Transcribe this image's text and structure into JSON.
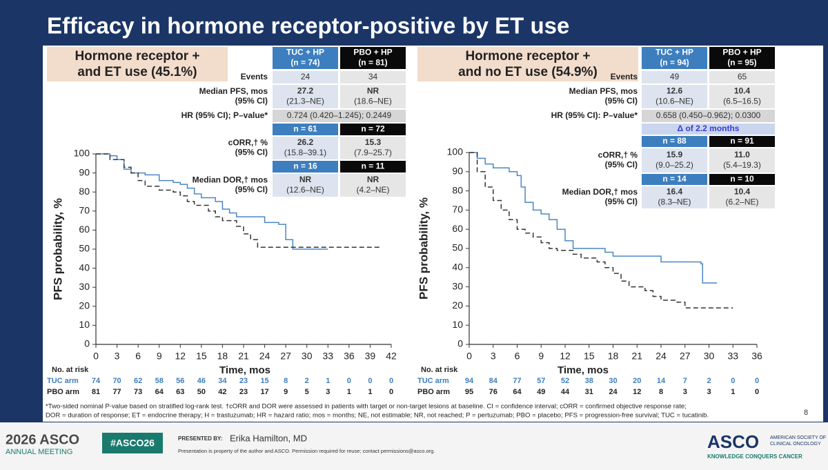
{
  "title": "Efficacy in hormone receptor-positive by ET use",
  "panels": [
    {
      "subgroup": [
        "Hormone receptor +",
        "and ET use (45.1%)"
      ],
      "table": {
        "rows": [
          {
            "cells": [
              [
                "TUC + HP",
                "(n = 74)"
              ],
              [
                "PBO + HP",
                "(n = 81)"
              ]
            ]
          },
          {
            "label": [
              "Events"
            ],
            "cells": [
              [
                "24"
              ],
              [
                "34"
              ]
            ]
          },
          {
            "label": [
              "Median PFS, mos",
              "(95% CI)"
            ],
            "cells": [
              [
                "27.2",
                "(21.3–NE)"
              ],
              [
                "NR",
                "(18.6–NE)"
              ]
            ]
          },
          {
            "label": [
              "HR (95% CI); P–value*"
            ],
            "cells": [
              [
                "0.724 (0.420–1.245); 0.2449"
              ]
            ]
          },
          {
            "cells": [
              [
                "n = 61"
              ],
              [
                "n = 72"
              ]
            ]
          },
          {
            "label": [
              "cORR,† %",
              "(95% CI)"
            ],
            "cells": [
              [
                "26.2",
                "(15.8–39.1)"
              ],
              [
                "15.3",
                "(7.9–25.7)"
              ]
            ]
          },
          {
            "cells": [
              [
                "n = 16"
              ],
              [
                "n = 11"
              ]
            ]
          },
          {
            "label": [
              "Median DOR,† mos",
              "(95% CI)"
            ],
            "cells": [
              [
                "NR",
                "(12.6–NE)"
              ],
              [
                "NR",
                "(4.2–NE)"
              ]
            ]
          }
        ]
      }
    },
    {
      "subgroup": [
        "Hormone receptor +",
        "and no ET use (54.9%)"
      ],
      "table": {
        "rows": [
          {
            "cells": [
              [
                "TUC + HP",
                "(n = 94)"
              ],
              [
                "PBO + HP",
                "(n = 95)"
              ]
            ]
          },
          {
            "label": [
              "Events"
            ],
            "cells": [
              [
                "49"
              ],
              [
                "65"
              ]
            ]
          },
          {
            "label": [
              "Median PFS, mos",
              "(95% CI)"
            ],
            "cells": [
              [
                "12.6",
                "(10.6–NE)"
              ],
              [
                "10.4",
                "(6.5–16.5)"
              ]
            ]
          },
          {
            "label": [
              "HR (95% CI): P–value*"
            ],
            "cells": [
              [
                "0.658 (0.450–0.962); 0.0300"
              ]
            ]
          },
          {
            "cells": [
              [
                "Δ of 2.2 months"
              ]
            ]
          },
          {
            "cells": [
              [
                "n = 88"
              ],
              [
                "n = 91"
              ]
            ]
          },
          {
            "label": [
              "cORR,† %",
              "(95% CI)"
            ],
            "cells": [
              [
                "15.9",
                "(9.0–25.2)"
              ],
              [
                "11.0",
                "(5.4–19.3)"
              ]
            ]
          },
          {
            "cells": [
              [
                "n = 14"
              ],
              [
                "n = 10"
              ]
            ]
          },
          {
            "label": [
              "Median DOR,† mos",
              "(95% CI)"
            ],
            "cells": [
              [
                "16.4",
                "(8.3–NE)"
              ],
              [
                "10.4",
                "(6.2–NE)"
              ]
            ]
          }
        ]
      }
    }
  ],
  "chart_data": [
    {
      "type": "line",
      "step": true,
      "xlabel": "Time, mos",
      "ylabel": "PFS probability, %",
      "xlim": [
        0,
        42
      ],
      "xticks": [
        0,
        3,
        6,
        9,
        12,
        15,
        18,
        21,
        24,
        27,
        30,
        33,
        36,
        39,
        42
      ],
      "ylim": [
        0,
        100
      ],
      "yticks": [
        0,
        10,
        20,
        30,
        40,
        50,
        60,
        70,
        80,
        90,
        100
      ],
      "risk_label": "No. at risk",
      "series": [
        {
          "name": "TUC arm",
          "color": "#4a86c5",
          "dash": false,
          "x": [
            0,
            2,
            3,
            4,
            5,
            7,
            9,
            11,
            12,
            13,
            14,
            15,
            17,
            18,
            19,
            20,
            23,
            24,
            26,
            27,
            28,
            33
          ],
          "values": [
            100,
            99,
            97,
            92,
            90,
            89,
            86,
            85,
            84,
            82,
            79,
            77,
            75,
            71,
            69,
            67,
            67,
            64,
            63,
            55,
            50,
            50
          ],
          "at_risk": [
            74,
            70,
            62,
            58,
            56,
            46,
            34,
            23,
            15,
            8,
            2,
            1,
            0,
            0,
            0
          ]
        },
        {
          "name": "PBO arm",
          "color": "#333333",
          "dash": true,
          "x": [
            0,
            2,
            4,
            5,
            6,
            7,
            9,
            11,
            12,
            13,
            14,
            16,
            17,
            18,
            20,
            21,
            22,
            23,
            40.5
          ],
          "values": [
            100,
            97,
            93,
            90,
            86,
            83,
            81,
            80,
            78,
            75,
            73,
            70,
            67,
            65,
            62,
            58,
            55,
            51,
            51
          ],
          "at_risk": [
            81,
            77,
            73,
            64,
            63,
            50,
            42,
            23,
            17,
            9,
            5,
            3,
            1,
            1,
            0
          ]
        }
      ]
    },
    {
      "type": "line",
      "step": true,
      "xlabel": "Time, mos",
      "ylabel": "PFS probability, %",
      "xlim": [
        0,
        36
      ],
      "xticks": [
        0,
        3,
        6,
        9,
        12,
        15,
        18,
        21,
        24,
        27,
        30,
        33,
        36
      ],
      "ylim": [
        0,
        100
      ],
      "yticks": [
        0,
        10,
        20,
        30,
        40,
        50,
        60,
        70,
        80,
        90,
        100
      ],
      "risk_label": "No. at risk",
      "series": [
        {
          "name": "TUC arm",
          "color": "#4a86c5",
          "dash": false,
          "x": [
            0,
            1,
            2,
            3,
            5,
            6,
            6.5,
            7,
            8,
            9,
            10,
            11,
            12,
            13,
            17,
            18,
            23,
            24,
            29,
            29.2,
            31
          ],
          "values": [
            100,
            97,
            94,
            92,
            90,
            88,
            82,
            74,
            70,
            68,
            65,
            60,
            54,
            50,
            48,
            46,
            46,
            43,
            42,
            32,
            32
          ],
          "at_risk": [
            94,
            84,
            77,
            57,
            52,
            38,
            30,
            20,
            14,
            7,
            2,
            0,
            0
          ]
        },
        {
          "name": "PBO arm",
          "color": "#333333",
          "dash": true,
          "x": [
            0,
            1,
            2,
            3,
            4,
            5,
            6,
            7,
            8,
            9,
            10,
            11,
            13,
            14,
            16,
            17,
            18,
            19,
            20,
            22,
            23,
            24,
            26,
            27,
            33
          ],
          "values": [
            100,
            90,
            82,
            75,
            70,
            65,
            60,
            58,
            56,
            53,
            50,
            49,
            47,
            45,
            43,
            40,
            37,
            33,
            30,
            28,
            25,
            23,
            22,
            19,
            19
          ],
          "at_risk": [
            95,
            76,
            64,
            49,
            44,
            31,
            24,
            12,
            8,
            3,
            3,
            1,
            0
          ]
        }
      ]
    }
  ],
  "footnote": [
    "*Two-sided nominal P-value based on stratified log-rank test. †cORR and DOR were assessed in patients with target or non-target lesions at baseline. CI = confidence interval; cORR = confirmed objective response rate;",
    "DOR = duration of response; ET = endocrine therapy; H = trastuzumab; HR = hazard ratio; mos = months; NE, not estimable; NR, not reached; P = pertuzumab; PBO = placebo; PFS = progression-free survival; TUC = tucatinib."
  ],
  "page_number": "8",
  "banner": {
    "meeting": "2026 ASCO",
    "meeting_sub": "ANNUAL MEETING",
    "hashtag": "#ASCO26",
    "presented_by": "PRESENTED BY:",
    "presenter": "Erika Hamilton, MD",
    "disclaimer": "Presentation is property of the author and ASCO. Permission required for reuse; contact permissions@asco.org.",
    "logo": "ASCO",
    "logo_sub": [
      "AMERICAN SOCIETY OF",
      "CLINICAL ONCOLOGY"
    ],
    "tagline": "KNOWLEDGE CONQUERS CANCER"
  }
}
